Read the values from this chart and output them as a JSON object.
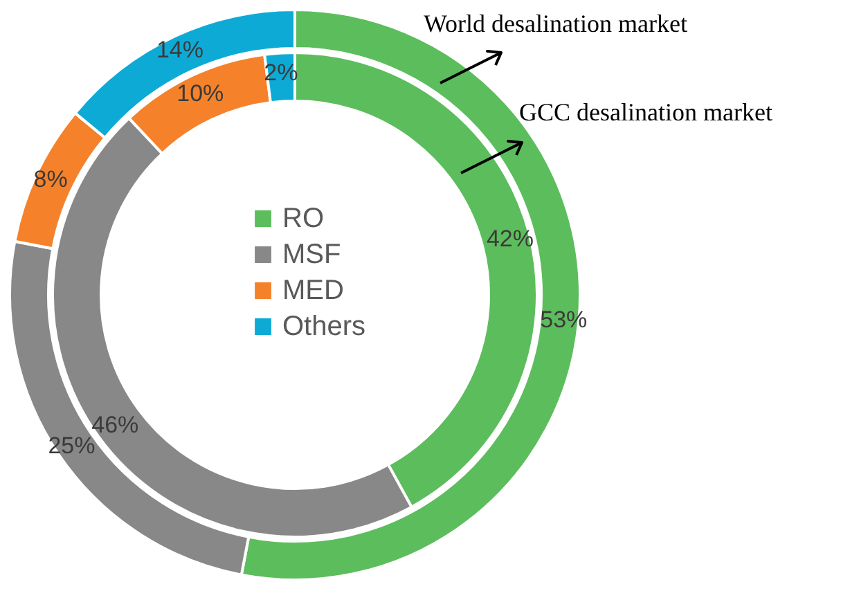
{
  "chart_data": {
    "type": "donut",
    "categories": [
      "RO",
      "MSF",
      "MED",
      "Others"
    ],
    "colors": [
      "#5cbd5c",
      "#888888",
      "#f5822a",
      "#0eaad6"
    ],
    "series": [
      {
        "name": "GCC desalination market",
        "values": [
          42,
          46,
          10,
          2
        ],
        "value_labels": [
          "42%",
          "46%",
          "10%",
          "2%"
        ]
      },
      {
        "name": "World desalination market",
        "values": [
          53,
          25,
          8,
          14
        ],
        "value_labels": [
          "53%",
          "25%",
          "8%",
          "14%"
        ]
      }
    ],
    "legend": "center"
  }
}
